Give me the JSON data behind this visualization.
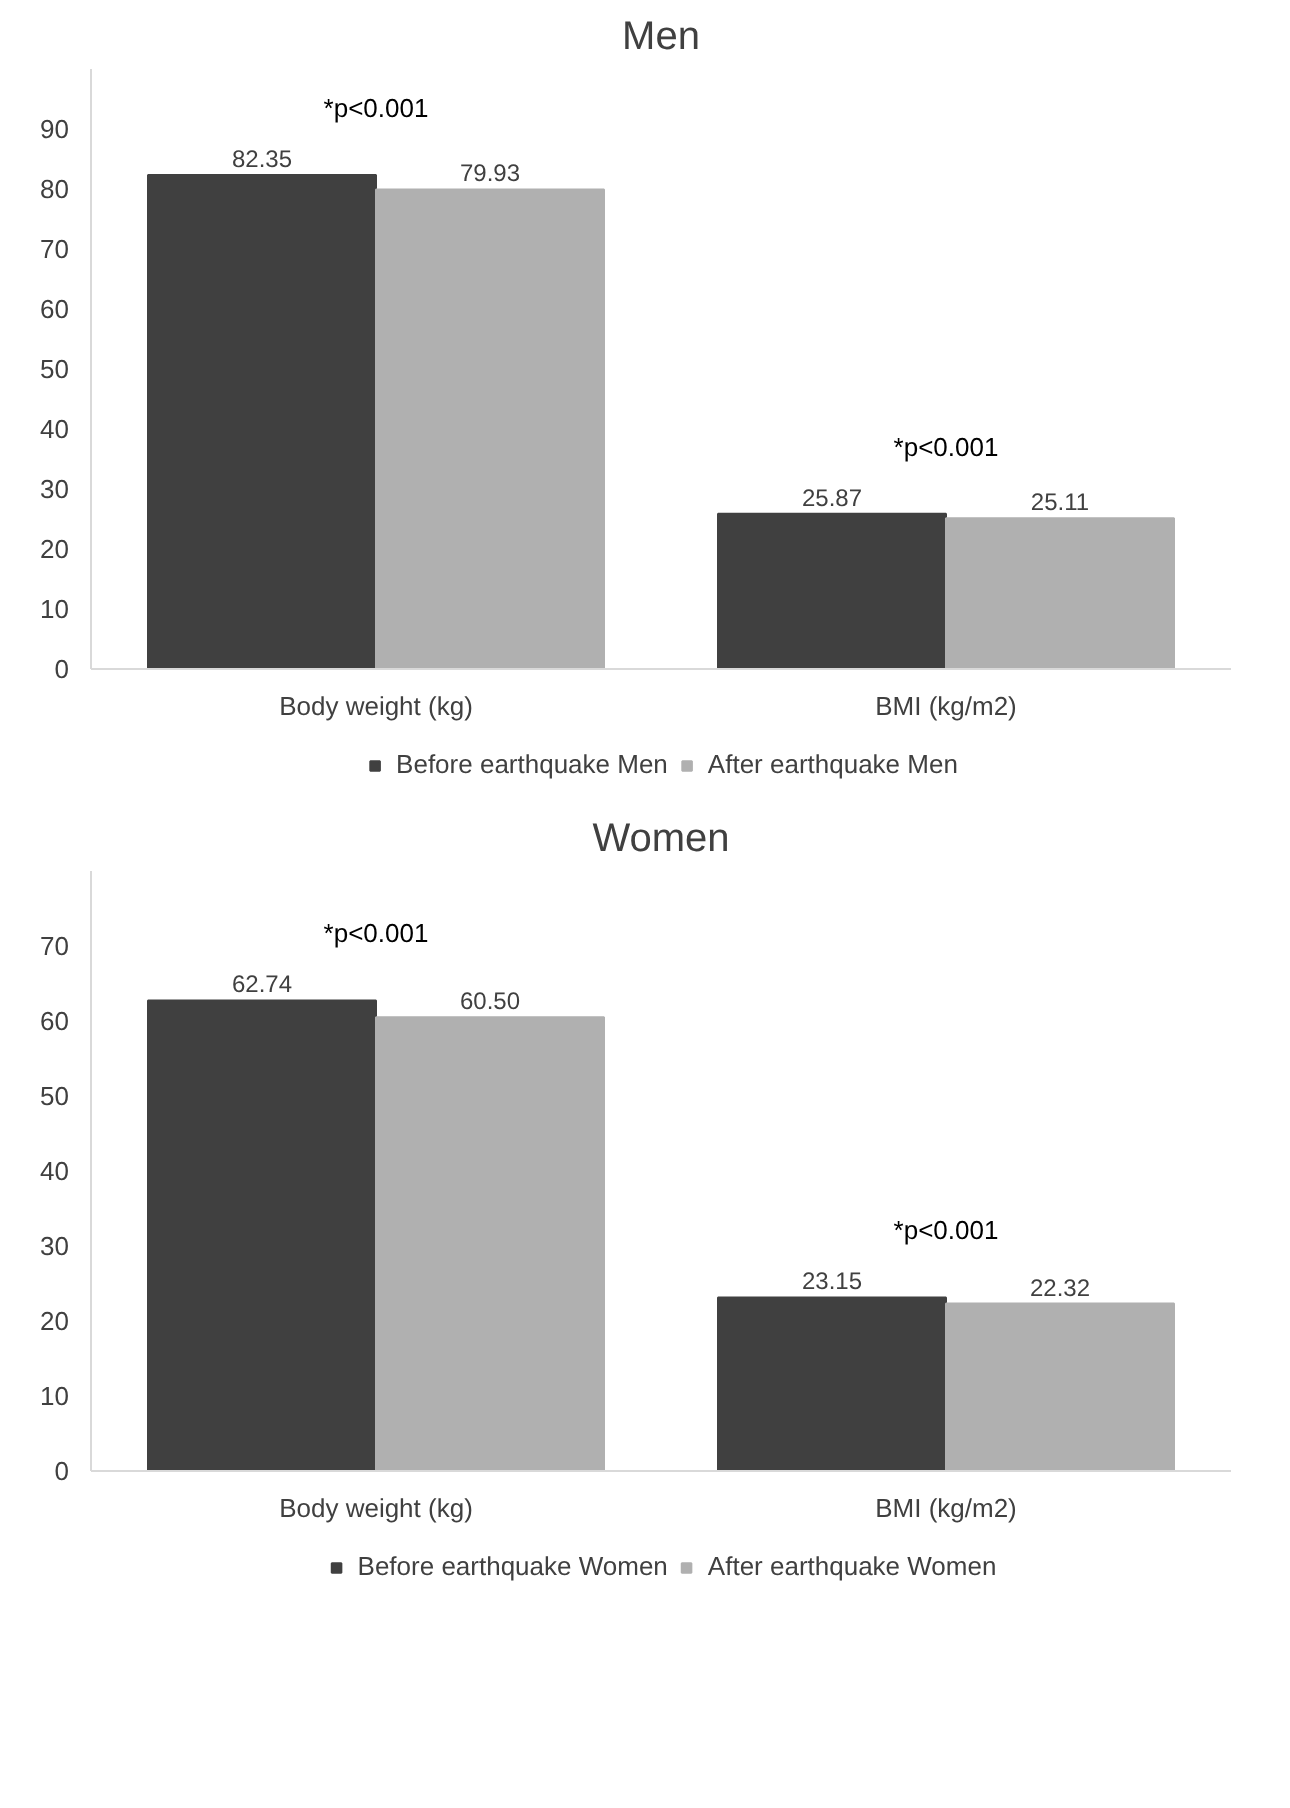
{
  "chart_data": [
    {
      "type": "bar",
      "title": "Men",
      "categories": [
        "Body weight (kg)",
        "BMI (kg/m2)"
      ],
      "series": [
        {
          "name": "Before earthquake Men",
          "color": "#404040",
          "values": [
            82.35,
            25.87
          ],
          "value_labels": [
            "82.35",
            "25.87"
          ]
        },
        {
          "name": "After earthquake Men",
          "color": "#b0b0b0",
          "values": [
            79.93,
            25.11
          ],
          "value_labels": [
            "79.93",
            "25.11"
          ]
        }
      ],
      "ylim": [
        0,
        100
      ],
      "yticks": [
        0,
        10,
        20,
        30,
        40,
        50,
        60,
        70,
        80,
        90
      ],
      "grid": false,
      "legend": "bottom",
      "annotations": [
        "*p<0.001",
        "*p<0.001"
      ]
    },
    {
      "type": "bar",
      "title": "Women",
      "categories": [
        "Body weight (kg)",
        "BMI (kg/m2)"
      ],
      "series": [
        {
          "name": "Before earthquake Women",
          "color": "#404040",
          "values": [
            62.74,
            23.15
          ],
          "value_labels": [
            "62.74",
            "23.15"
          ]
        },
        {
          "name": "After earthquake Women",
          "color": "#b0b0b0",
          "values": [
            60.5,
            22.32
          ],
          "value_labels": [
            "60.50",
            "22.32"
          ]
        }
      ],
      "ylim": [
        0,
        80
      ],
      "yticks": [
        0,
        10,
        20,
        30,
        40,
        50,
        60,
        70
      ],
      "grid": false,
      "legend": "bottom",
      "annotations": [
        "*p<0.001",
        "*p<0.001"
      ]
    }
  ]
}
